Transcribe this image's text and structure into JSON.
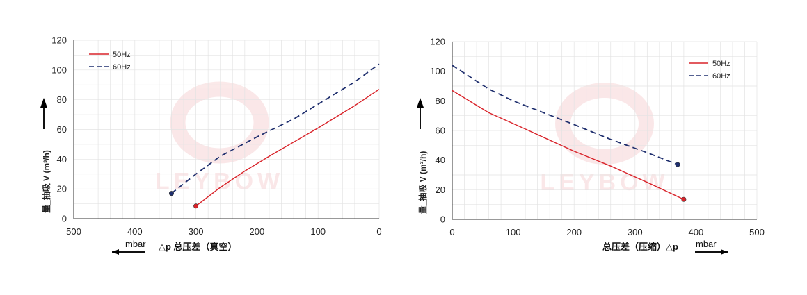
{
  "chart_data": [
    {
      "type": "line",
      "title": "",
      "xlabel": "△p 总压差（真空）",
      "x_unit": "mbar",
      "ylabel": "量_抽吸 V (m³/h)",
      "xlim": [
        500,
        0
      ],
      "ylim": [
        0,
        120
      ],
      "x_reversed": true,
      "x_ticks": [
        "500",
        "400",
        "300",
        "200",
        "100",
        "0"
      ],
      "y_ticks": [
        "0",
        "20",
        "40",
        "60",
        "80",
        "100",
        "120"
      ],
      "grid": true,
      "legend_position": "top-left",
      "watermark_text": "LEYBOW",
      "series": [
        {
          "name": "50Hz",
          "color": "#d9232a",
          "dash": "solid",
          "x": [
            300,
            260,
            220,
            180,
            140,
            100,
            40,
            0
          ],
          "y": [
            8.5,
            21,
            32,
            42,
            51.5,
            61,
            76,
            87
          ]
        },
        {
          "name": "60Hz",
          "color": "#1f2f6e",
          "dash": "dashed",
          "x": [
            340,
            300,
            260,
            200,
            140,
            100,
            40,
            0
          ],
          "y": [
            17,
            30,
            42,
            55,
            67,
            77,
            92,
            104
          ]
        }
      ]
    },
    {
      "type": "line",
      "title": "",
      "xlabel": "总压差（压缩）△p",
      "x_unit": "mbar",
      "ylabel": "量_抽吸 V (m³/h)",
      "xlim": [
        0,
        500
      ],
      "ylim": [
        0,
        120
      ],
      "x_reversed": false,
      "x_ticks": [
        "0",
        "100",
        "200",
        "300",
        "400",
        "500"
      ],
      "y_ticks": [
        "0",
        "20",
        "40",
        "60",
        "80",
        "100",
        "120"
      ],
      "grid": true,
      "legend_position": "top-right",
      "watermark_text": "LEYBOW",
      "series": [
        {
          "name": "50Hz",
          "color": "#d9232a",
          "dash": "solid",
          "x": [
            0,
            60,
            120,
            200,
            260,
            320,
            380
          ],
          "y": [
            87,
            72,
            61,
            46,
            36,
            25,
            13.5
          ]
        },
        {
          "name": "60Hz",
          "color": "#1f2f6e",
          "dash": "dashed",
          "x": [
            0,
            60,
            100,
            200,
            260,
            320,
            370
          ],
          "y": [
            104,
            88,
            80,
            64,
            54,
            45,
            37
          ]
        }
      ]
    }
  ]
}
